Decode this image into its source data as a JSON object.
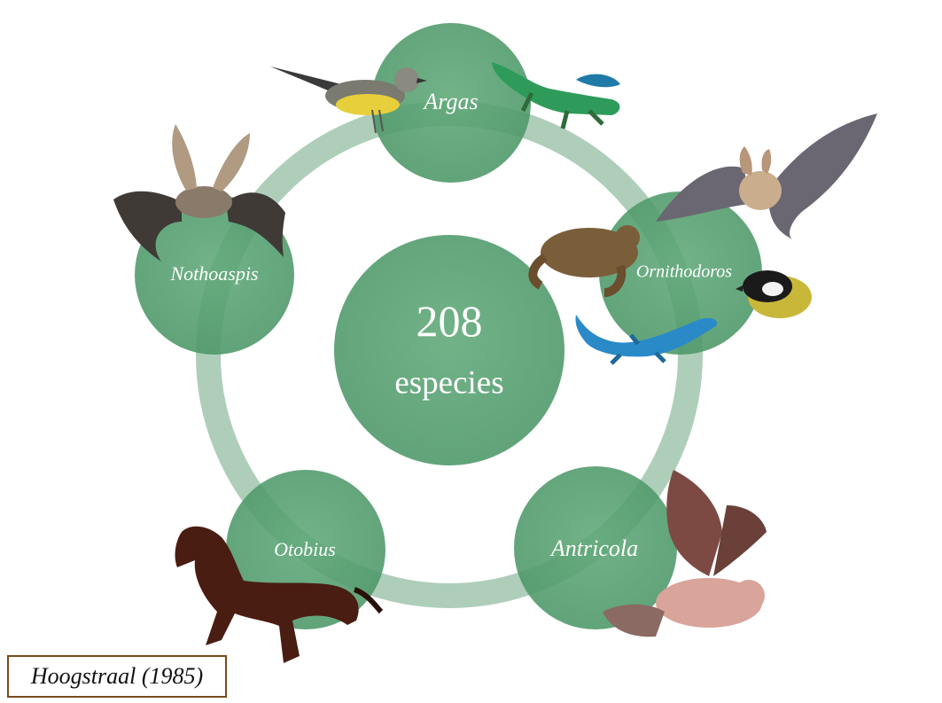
{
  "center": {
    "count": "208",
    "unit": "especies"
  },
  "genera": [
    {
      "name": "Argas"
    },
    {
      "name": "Ornithodoros"
    },
    {
      "name": "Antricola"
    },
    {
      "name": "Otobius"
    },
    {
      "name": "Nothoaspis"
    }
  ],
  "citation": "Hoogstraal (1985)",
  "colors": {
    "circle": "#4f9a6a",
    "ring": "#8fbf9f",
    "text": "#ffffff"
  }
}
